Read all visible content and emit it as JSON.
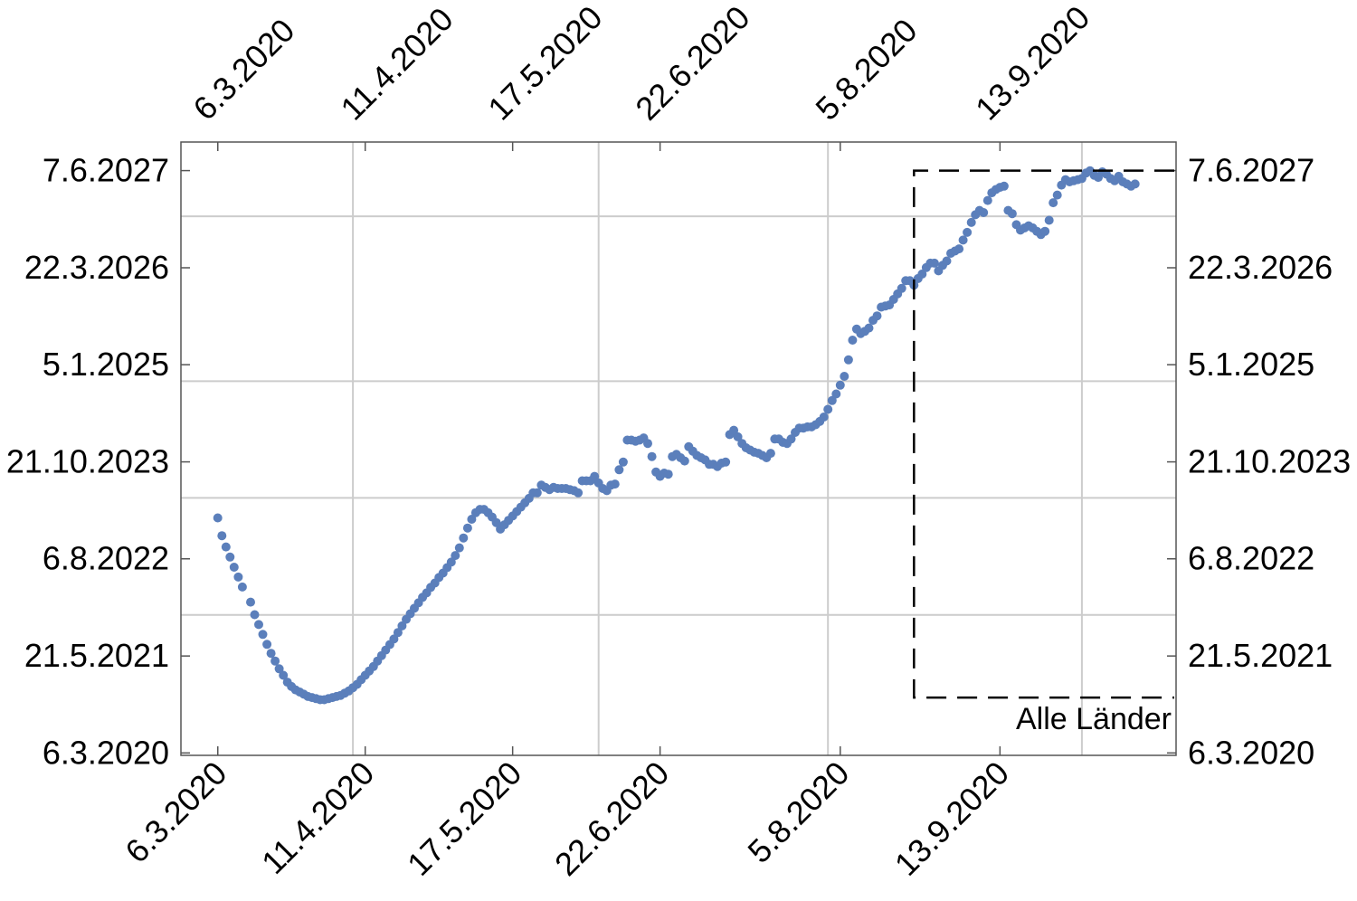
{
  "chart_data": {
    "type": "scatter",
    "title": "",
    "xlabel": "",
    "ylabel": "",
    "x_axis_type": "date",
    "y_axis_type": "date",
    "xlim": [
      "2020-02-26",
      "2020-10-26"
    ],
    "ylim": [
      "2020-02-24",
      "2027-10-15"
    ],
    "x_ticks": [
      {
        "date": "2020-03-06",
        "label": "6.3.2020"
      },
      {
        "date": "2020-04-11",
        "label": "11.4.2020"
      },
      {
        "date": "2020-05-17",
        "label": "17.5.2020"
      },
      {
        "date": "2020-06-22",
        "label": "22.6.2020"
      },
      {
        "date": "2020-08-05",
        "label": "5.8.2020"
      },
      {
        "date": "2020-09-13",
        "label": "13.9.2020"
      }
    ],
    "y_ticks": [
      {
        "date": "2020-03-06",
        "label": "6.3.2020"
      },
      {
        "date": "2021-05-21",
        "label": "21.5.2021"
      },
      {
        "date": "2022-08-06",
        "label": "6.8.2022"
      },
      {
        "date": "2023-10-21",
        "label": "21.10.2023"
      },
      {
        "date": "2025-01-05",
        "label": "5.1.2025"
      },
      {
        "date": "2026-03-22",
        "label": "22.3.2026"
      },
      {
        "date": "2027-06-07",
        "label": "7.6.2027"
      }
    ],
    "gridlines": {
      "x": [
        "2020-04-08",
        "2020-06-07",
        "2020-08-02",
        "2020-10-03"
      ],
      "y": [
        "2021-11-24",
        "2023-05-10",
        "2024-10-22",
        "2026-11-11"
      ]
    },
    "grid": true,
    "series": [
      {
        "name": "",
        "color": "#5b7fbb",
        "points": [
          [
            "2020-03-06",
            "2023-02-08"
          ],
          [
            "2020-03-07",
            "2022-11-19"
          ],
          [
            "2020-03-08",
            "2022-09-29"
          ],
          [
            "2020-03-09",
            "2022-08-14"
          ],
          [
            "2020-03-10",
            "2022-06-29"
          ],
          [
            "2020-03-11",
            "2022-05-15"
          ],
          [
            "2020-03-12",
            "2022-03-31"
          ],
          [
            "2020-03-14",
            "2022-01-21"
          ],
          [
            "2020-03-15",
            "2021-11-25"
          ],
          [
            "2020-03-16",
            "2021-10-11"
          ],
          [
            "2020-03-17",
            "2021-08-27"
          ],
          [
            "2020-03-18",
            "2021-07-13"
          ],
          [
            "2020-03-19",
            "2021-06-02"
          ],
          [
            "2020-03-20",
            "2021-04-28"
          ],
          [
            "2020-03-21",
            "2021-03-24"
          ],
          [
            "2020-03-22",
            "2021-02-22"
          ],
          [
            "2020-03-23",
            "2021-01-22"
          ],
          [
            "2020-03-24",
            "2021-01-02"
          ],
          [
            "2020-03-25",
            "2020-12-18"
          ],
          [
            "2020-03-26",
            "2020-12-08"
          ],
          [
            "2020-03-27",
            "2020-11-28"
          ],
          [
            "2020-03-28",
            "2020-11-18"
          ],
          [
            "2020-03-29",
            "2020-11-13"
          ],
          [
            "2020-03-30",
            "2020-11-08"
          ],
          [
            "2020-03-31",
            "2020-11-03"
          ],
          [
            "2020-04-01",
            "2020-11-03"
          ],
          [
            "2020-04-02",
            "2020-11-08"
          ],
          [
            "2020-04-03",
            "2020-11-13"
          ],
          [
            "2020-04-04",
            "2020-11-18"
          ],
          [
            "2020-04-05",
            "2020-11-23"
          ],
          [
            "2020-04-06",
            "2020-12-03"
          ],
          [
            "2020-04-07",
            "2020-12-13"
          ],
          [
            "2020-04-08",
            "2020-12-28"
          ],
          [
            "2020-04-09",
            "2021-01-12"
          ],
          [
            "2020-04-10",
            "2021-02-02"
          ],
          [
            "2020-04-11",
            "2021-02-22"
          ],
          [
            "2020-04-12",
            "2021-03-14"
          ],
          [
            "2020-04-13",
            "2021-04-03"
          ],
          [
            "2020-04-14",
            "2021-04-28"
          ],
          [
            "2020-04-15",
            "2021-05-23"
          ],
          [
            "2020-04-16",
            "2021-06-17"
          ],
          [
            "2020-04-17",
            "2021-07-12"
          ],
          [
            "2020-04-18",
            "2021-08-06"
          ],
          [
            "2020-04-19",
            "2021-09-05"
          ],
          [
            "2020-04-20",
            "2021-10-05"
          ],
          [
            "2020-04-21",
            "2021-11-04"
          ],
          [
            "2020-04-22",
            "2021-11-29"
          ],
          [
            "2020-04-23",
            "2021-12-24"
          ],
          [
            "2020-04-24",
            "2022-01-18"
          ],
          [
            "2020-04-25",
            "2022-02-12"
          ],
          [
            "2020-04-26",
            "2022-03-04"
          ],
          [
            "2020-04-27",
            "2022-03-29"
          ],
          [
            "2020-04-28",
            "2022-04-18"
          ],
          [
            "2020-04-29",
            "2022-05-13"
          ],
          [
            "2020-04-30",
            "2022-06-02"
          ],
          [
            "2020-05-01",
            "2022-06-27"
          ],
          [
            "2020-05-02",
            "2022-07-22"
          ],
          [
            "2020-05-03",
            "2022-08-21"
          ],
          [
            "2020-05-04",
            "2022-09-25"
          ],
          [
            "2020-05-05",
            "2022-11-09"
          ],
          [
            "2020-05-06",
            "2022-12-24"
          ],
          [
            "2020-05-07",
            "2023-02-02"
          ],
          [
            "2020-05-08",
            "2023-03-04"
          ],
          [
            "2020-05-09",
            "2023-03-19"
          ],
          [
            "2020-05-10",
            "2023-03-19"
          ],
          [
            "2020-05-11",
            "2023-03-04"
          ],
          [
            "2020-05-12",
            "2023-02-12"
          ],
          [
            "2020-05-13",
            "2023-01-18"
          ],
          [
            "2020-05-14",
            "2022-12-19"
          ],
          [
            "2020-05-15",
            "2023-01-08"
          ],
          [
            "2020-05-16",
            "2023-01-28"
          ],
          [
            "2020-05-17",
            "2023-02-17"
          ],
          [
            "2020-05-18",
            "2023-03-09"
          ],
          [
            "2020-05-19",
            "2023-03-29"
          ],
          [
            "2020-05-20",
            "2023-04-18"
          ],
          [
            "2020-05-21",
            "2023-05-08"
          ],
          [
            "2020-05-22",
            "2023-06-02"
          ],
          [
            "2020-05-23",
            "2023-06-02"
          ],
          [
            "2020-05-24",
            "2023-07-07"
          ],
          [
            "2020-05-25",
            "2023-06-27"
          ],
          [
            "2020-05-26",
            "2023-06-17"
          ],
          [
            "2020-05-27",
            "2023-06-27"
          ],
          [
            "2020-05-28",
            "2023-06-22"
          ],
          [
            "2020-05-29",
            "2023-06-22"
          ],
          [
            "2020-05-30",
            "2023-06-22"
          ],
          [
            "2020-05-31",
            "2023-06-17"
          ],
          [
            "2020-06-01",
            "2023-06-12"
          ],
          [
            "2020-06-02",
            "2023-06-02"
          ],
          [
            "2020-06-03",
            "2023-07-27"
          ],
          [
            "2020-06-04",
            "2023-07-27"
          ],
          [
            "2020-06-05",
            "2023-07-27"
          ],
          [
            "2020-06-06",
            "2023-08-16"
          ],
          [
            "2020-06-07",
            "2023-07-17"
          ],
          [
            "2020-06-08",
            "2023-06-22"
          ],
          [
            "2020-06-09",
            "2023-06-12"
          ],
          [
            "2020-06-10",
            "2023-07-07"
          ],
          [
            "2020-06-11",
            "2023-07-12"
          ],
          [
            "2020-06-12",
            "2023-09-15"
          ],
          [
            "2020-06-13",
            "2023-10-20"
          ],
          [
            "2020-06-14",
            "2024-01-28"
          ],
          [
            "2020-06-15",
            "2024-01-28"
          ],
          [
            "2020-06-16",
            "2024-01-23"
          ],
          [
            "2020-06-17",
            "2024-01-28"
          ],
          [
            "2020-06-18",
            "2024-02-07"
          ],
          [
            "2020-06-19",
            "2024-01-13"
          ],
          [
            "2020-06-20",
            "2023-11-14"
          ],
          [
            "2020-06-21",
            "2023-09-05"
          ],
          [
            "2020-06-22",
            "2023-08-16"
          ],
          [
            "2020-06-23",
            "2023-08-31"
          ],
          [
            "2020-06-24",
            "2023-08-26"
          ],
          [
            "2020-06-25",
            "2023-11-14"
          ],
          [
            "2020-06-26",
            "2023-11-24"
          ],
          [
            "2020-06-27",
            "2023-11-09"
          ],
          [
            "2020-06-28",
            "2023-10-25"
          ],
          [
            "2020-06-29",
            "2023-12-29"
          ],
          [
            "2020-06-30",
            "2023-12-09"
          ],
          [
            "2020-07-01",
            "2023-11-19"
          ],
          [
            "2020-07-02",
            "2023-11-09"
          ],
          [
            "2020-07-03",
            "2023-10-30"
          ],
          [
            "2020-07-04",
            "2023-10-10"
          ],
          [
            "2020-07-05",
            "2023-10-10"
          ],
          [
            "2020-07-06",
            "2023-09-30"
          ],
          [
            "2020-07-07",
            "2023-10-15"
          ],
          [
            "2020-07-08",
            "2023-10-20"
          ],
          [
            "2020-07-09",
            "2024-02-22"
          ],
          [
            "2020-07-10",
            "2024-03-13"
          ],
          [
            "2020-07-11",
            "2024-02-12"
          ],
          [
            "2020-07-12",
            "2024-01-13"
          ],
          [
            "2020-07-13",
            "2023-12-24"
          ],
          [
            "2020-07-14",
            "2023-12-14"
          ],
          [
            "2020-07-15",
            "2023-12-04"
          ],
          [
            "2020-07-16",
            "2023-11-29"
          ],
          [
            "2020-07-17",
            "2023-11-19"
          ],
          [
            "2020-07-18",
            "2023-11-09"
          ],
          [
            "2020-07-19",
            "2023-11-29"
          ],
          [
            "2020-07-20",
            "2024-02-02"
          ],
          [
            "2020-07-21",
            "2024-02-02"
          ],
          [
            "2020-07-22",
            "2024-01-18"
          ],
          [
            "2020-07-23",
            "2024-01-13"
          ],
          [
            "2020-07-24",
            "2024-02-02"
          ],
          [
            "2020-07-25",
            "2024-03-03"
          ],
          [
            "2020-07-26",
            "2024-03-23"
          ],
          [
            "2020-07-27",
            "2024-03-23"
          ],
          [
            "2020-07-28",
            "2024-03-28"
          ],
          [
            "2020-07-29",
            "2024-03-28"
          ],
          [
            "2020-07-30",
            "2024-04-07"
          ],
          [
            "2020-07-31",
            "2024-04-22"
          ],
          [
            "2020-08-01",
            "2024-05-12"
          ],
          [
            "2020-08-02",
            "2024-06-16"
          ],
          [
            "2020-08-03",
            "2024-07-26"
          ],
          [
            "2020-08-04",
            "2024-08-25"
          ],
          [
            "2020-08-05",
            "2024-10-04"
          ],
          [
            "2020-08-06",
            "2024-11-13"
          ],
          [
            "2020-08-07",
            "2025-01-27"
          ],
          [
            "2020-08-08",
            "2025-04-27"
          ],
          [
            "2020-08-09",
            "2025-06-16"
          ],
          [
            "2020-08-10",
            "2025-05-27"
          ],
          [
            "2020-08-11",
            "2025-06-06"
          ],
          [
            "2020-08-12",
            "2025-06-21"
          ],
          [
            "2020-08-13",
            "2025-07-26"
          ],
          [
            "2020-08-14",
            "2025-08-15"
          ],
          [
            "2020-08-15",
            "2025-09-24"
          ],
          [
            "2020-08-16",
            "2025-09-29"
          ],
          [
            "2020-08-17",
            "2025-10-04"
          ],
          [
            "2020-08-18",
            "2025-10-29"
          ],
          [
            "2020-08-19",
            "2025-11-23"
          ],
          [
            "2020-08-20",
            "2025-12-18"
          ],
          [
            "2020-08-21",
            "2026-01-22"
          ],
          [
            "2020-08-22",
            "2026-01-22"
          ],
          [
            "2020-08-23",
            "2026-01-02"
          ],
          [
            "2020-08-24",
            "2026-02-01"
          ],
          [
            "2020-08-25",
            "2026-02-21"
          ],
          [
            "2020-08-26",
            "2026-03-23"
          ],
          [
            "2020-08-27",
            "2026-04-12"
          ],
          [
            "2020-08-28",
            "2026-04-12"
          ],
          [
            "2020-08-29",
            "2026-03-08"
          ],
          [
            "2020-08-30",
            "2026-04-02"
          ],
          [
            "2020-08-31",
            "2026-04-22"
          ],
          [
            "2020-09-01",
            "2026-05-27"
          ],
          [
            "2020-09-02",
            "2026-06-06"
          ],
          [
            "2020-09-03",
            "2026-06-16"
          ],
          [
            "2020-09-04",
            "2026-07-26"
          ],
          [
            "2020-09-05",
            "2026-08-30"
          ],
          [
            "2020-09-06",
            "2026-10-14"
          ],
          [
            "2020-09-07",
            "2026-11-18"
          ],
          [
            "2020-09-08",
            "2026-12-08"
          ],
          [
            "2020-09-09",
            "2026-11-28"
          ],
          [
            "2020-09-10",
            "2027-01-22"
          ],
          [
            "2020-09-11",
            "2027-02-26"
          ],
          [
            "2020-09-12",
            "2027-03-13"
          ],
          [
            "2020-09-13",
            "2027-03-23"
          ],
          [
            "2020-09-14",
            "2027-03-28"
          ],
          [
            "2020-09-15",
            "2026-12-08"
          ],
          [
            "2020-09-16",
            "2026-11-23"
          ],
          [
            "2020-09-17",
            "2026-10-04"
          ],
          [
            "2020-09-18",
            "2026-09-09"
          ],
          [
            "2020-09-19",
            "2026-09-19"
          ],
          [
            "2020-09-20",
            "2026-09-29"
          ],
          [
            "2020-09-21",
            "2026-09-19"
          ],
          [
            "2020-09-22",
            "2026-09-04"
          ],
          [
            "2020-09-23",
            "2026-08-20"
          ],
          [
            "2020-09-24",
            "2026-09-04"
          ],
          [
            "2020-09-25",
            "2026-10-24"
          ],
          [
            "2020-09-26",
            "2027-01-12"
          ],
          [
            "2020-09-27",
            "2027-02-16"
          ],
          [
            "2020-09-28",
            "2027-04-02"
          ],
          [
            "2020-09-29",
            "2027-04-27"
          ],
          [
            "2020-09-30",
            "2027-04-17"
          ],
          [
            "2020-10-01",
            "2027-04-22"
          ],
          [
            "2020-10-02",
            "2027-04-27"
          ],
          [
            "2020-10-03",
            "2027-05-02"
          ],
          [
            "2020-10-04",
            "2027-05-27"
          ],
          [
            "2020-10-05",
            "2027-06-06"
          ],
          [
            "2020-10-06",
            "2027-05-17"
          ],
          [
            "2020-10-07",
            "2027-05-07"
          ],
          [
            "2020-10-08",
            "2027-06-01"
          ],
          [
            "2020-10-09",
            "2027-05-22"
          ],
          [
            "2020-10-10",
            "2027-05-02"
          ],
          [
            "2020-10-11",
            "2027-04-22"
          ],
          [
            "2020-10-12",
            "2027-05-12"
          ],
          [
            "2020-10-13",
            "2027-04-17"
          ],
          [
            "2020-10-14",
            "2027-04-07"
          ],
          [
            "2020-10-15",
            "2027-03-28"
          ],
          [
            "2020-10-16",
            "2027-04-07"
          ]
        ]
      }
    ],
    "legend": {
      "text": "Alle Länder",
      "placement": "bottom-right",
      "line_style": "dashed"
    },
    "annotation_box": {
      "x_from": "2020-08-23",
      "x_to": "2020-10-26",
      "y_from": "2020-11-13",
      "y_to": "2027-06-07",
      "style": "dashed"
    }
  }
}
